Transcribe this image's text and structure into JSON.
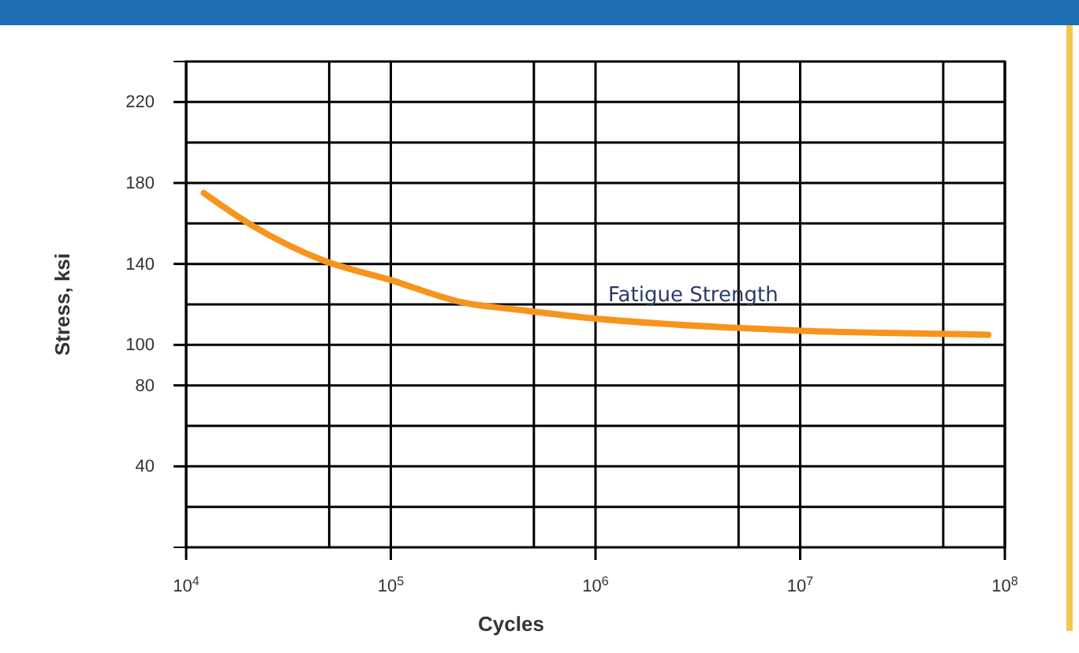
{
  "chart_data": {
    "type": "line",
    "xlabel": "Cycles",
    "ylabel": "Stress, ksi",
    "log": "x",
    "x": [
      12200,
      21000,
      46000,
      100000,
      224000,
      450000,
      1000000,
      4700000,
      10000000,
      48000000,
      83000000
    ],
    "series": [
      {
        "name": "Fatigue Strength",
        "color": "#f7941d",
        "values": [
          175,
          159,
          142,
          132,
          121,
          117,
          113,
          108.5,
          107,
          105.5,
          105
        ]
      }
    ],
    "xlim": [
      10000,
      100000000
    ],
    "xticks": [
      {
        "value": 10000,
        "label": "10$^{4}$"
      },
      {
        "value": 50000,
        "label": null
      },
      {
        "value": 100000,
        "label": "10$^{5}$"
      },
      {
        "value": 500000,
        "label": null
      },
      {
        "value": 1000000,
        "label": "10$^{6}$"
      },
      {
        "value": 5000000,
        "label": null
      },
      {
        "value": 10000000,
        "label": "10$^{7}$"
      },
      {
        "value": 50000000,
        "label": null
      },
      {
        "value": 100000000,
        "label": "10$^{8}$"
      }
    ],
    "ylim": [
      0,
      240
    ],
    "yticks": [
      {
        "value": 20,
        "label": null
      },
      40,
      {
        "value": 60,
        "label": null
      },
      80,
      100,
      {
        "value": 120,
        "label": null
      },
      140,
      {
        "value": 160,
        "label": null
      },
      180,
      {
        "value": 200,
        "label": null
      },
      220
    ],
    "grid": true,
    "legend": false,
    "marker": "none",
    "line_style": "solid"
  }
}
